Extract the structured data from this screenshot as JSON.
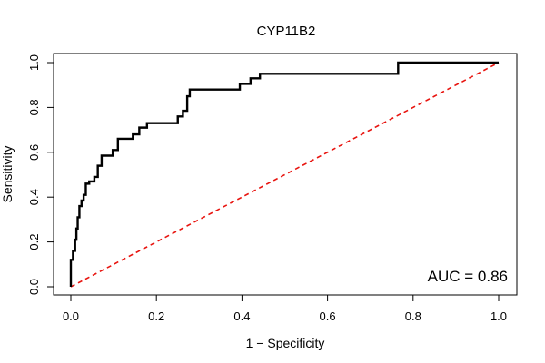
{
  "chart_data": {
    "type": "line",
    "title": "CYP11B2",
    "xlabel": "1 − Specificity",
    "ylabel": "Sensitivity",
    "xlim": [
      0,
      1
    ],
    "ylim": [
      0,
      1
    ],
    "xticks": [
      0.0,
      0.2,
      0.4,
      0.6,
      0.8,
      1.0
    ],
    "yticks": [
      0.0,
      0.2,
      0.4,
      0.6,
      0.8,
      1.0
    ],
    "xtick_labels": [
      "0.0",
      "0.2",
      "0.4",
      "0.6",
      "0.8",
      "1.0"
    ],
    "ytick_labels": [
      "0.0",
      "0.2",
      "0.4",
      "0.6",
      "0.8",
      "1.0"
    ],
    "annotation": "AUC = 0.86",
    "series": [
      {
        "name": "ROC",
        "style": "step",
        "color": "#000000",
        "x": [
          0.0,
          0.0,
          0.005,
          0.005,
          0.01,
          0.01,
          0.013,
          0.013,
          0.016,
          0.016,
          0.02,
          0.02,
          0.025,
          0.025,
          0.03,
          0.03,
          0.035,
          0.035,
          0.043,
          0.043,
          0.055,
          0.055,
          0.063,
          0.063,
          0.072,
          0.072,
          0.098,
          0.098,
          0.11,
          0.11,
          0.145,
          0.145,
          0.16,
          0.16,
          0.178,
          0.178,
          0.25,
          0.25,
          0.262,
          0.262,
          0.272,
          0.272,
          0.278,
          0.278,
          0.395,
          0.395,
          0.42,
          0.42,
          0.442,
          0.442,
          0.765,
          0.765,
          1.0
        ],
        "y": [
          0.0,
          0.12,
          0.12,
          0.16,
          0.16,
          0.21,
          0.21,
          0.26,
          0.26,
          0.31,
          0.31,
          0.36,
          0.36,
          0.385,
          0.385,
          0.41,
          0.41,
          0.46,
          0.46,
          0.47,
          0.47,
          0.49,
          0.49,
          0.54,
          0.54,
          0.585,
          0.585,
          0.61,
          0.61,
          0.66,
          0.66,
          0.68,
          0.68,
          0.71,
          0.71,
          0.73,
          0.73,
          0.76,
          0.76,
          0.785,
          0.785,
          0.85,
          0.85,
          0.88,
          0.88,
          0.905,
          0.905,
          0.93,
          0.93,
          0.95,
          0.95,
          1.0,
          1.0
        ]
      },
      {
        "name": "Reference",
        "style": "dashed",
        "color": "#e8140f",
        "x": [
          0,
          1
        ],
        "y": [
          0,
          1
        ]
      }
    ]
  }
}
